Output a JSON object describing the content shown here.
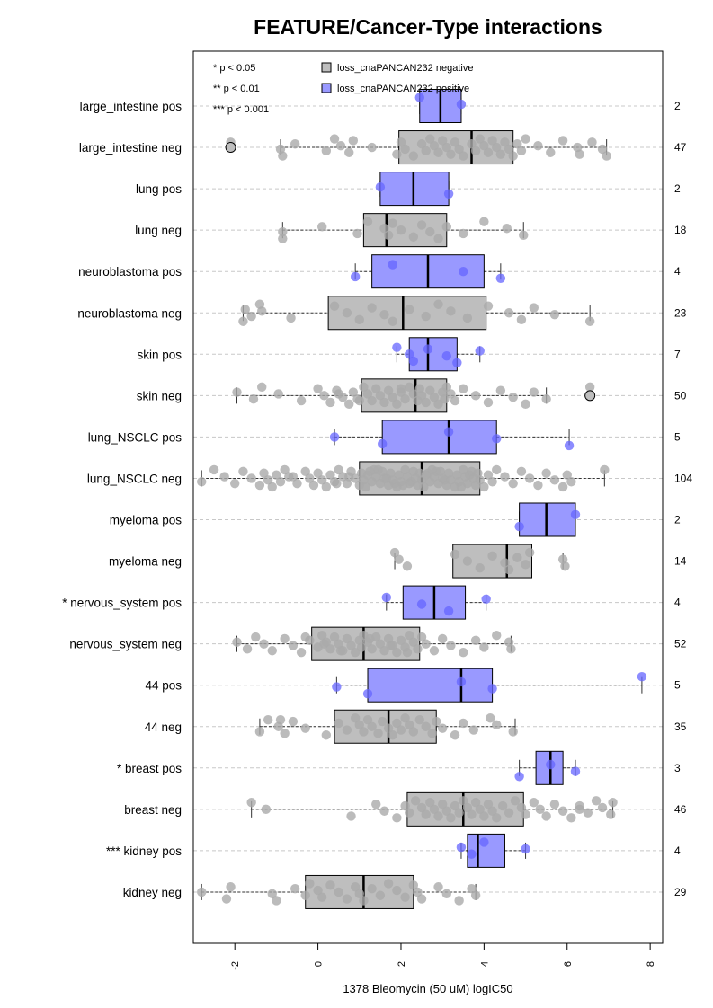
{
  "chart_data": {
    "type": "boxplot",
    "orientation": "horizontal",
    "title": "FEATURE/Cancer-Type interactions",
    "xlabel": "1378 Bleomycin (50 uM) logIC50",
    "xlim": [
      -3.0,
      8.3
    ],
    "x_ticks": [
      -2,
      0,
      2,
      4,
      6,
      8
    ],
    "grid": "horizontal dashed",
    "colors": {
      "negative": "#bebebe",
      "positive": "#9999ff",
      "negative_point": "#aaaaaa",
      "positive_point": "#6666ff"
    },
    "legend": {
      "placement": "top",
      "significance": [
        "* p < 0.05",
        "** p < 0.01",
        "*** p < 0.001"
      ],
      "entries": [
        {
          "label": "loss_cnaPANCAN232 negative",
          "group": "negative"
        },
        {
          "label": "loss_cnaPANCAN232 positive",
          "group": "positive"
        }
      ]
    },
    "rows": [
      {
        "label": "large_intestine pos",
        "group": "positive",
        "n": "2",
        "q1": 2.45,
        "median": 2.95,
        "q3": 3.45,
        "whisker_low": 2.45,
        "whisker_high": 3.45,
        "outliers": [],
        "points": [
          2.45,
          3.45
        ]
      },
      {
        "label": "large_intestine neg",
        "group": "negative",
        "n": "47",
        "q1": 1.95,
        "median": 3.7,
        "q3": 4.7,
        "whisker_low": -0.9,
        "whisker_high": 6.95,
        "outliers": [
          -2.1
        ],
        "points": [
          -2.1,
          -0.9,
          -0.85,
          -0.55,
          0.2,
          0.4,
          0.55,
          0.75,
          0.85,
          1.3,
          1.9,
          2.0,
          2.1,
          2.3,
          2.5,
          2.6,
          2.7,
          2.8,
          2.9,
          3.0,
          3.1,
          3.2,
          3.3,
          3.4,
          3.5,
          3.7,
          3.8,
          3.9,
          4.0,
          4.1,
          4.2,
          4.3,
          4.4,
          4.5,
          4.6,
          4.7,
          4.8,
          4.9,
          5.0,
          5.3,
          5.6,
          5.9,
          6.25,
          6.3,
          6.6,
          6.85,
          6.95
        ]
      },
      {
        "label": "lung pos",
        "group": "positive",
        "n": "2",
        "q1": 1.5,
        "median": 2.3,
        "q3": 3.15,
        "whisker_low": 1.5,
        "whisker_high": 3.15,
        "outliers": [],
        "points": [
          1.5,
          3.15
        ]
      },
      {
        "label": "lung neg",
        "group": "negative",
        "n": "18",
        "q1": 1.1,
        "median": 1.65,
        "q3": 3.1,
        "whisker_low": -0.85,
        "whisker_high": 4.95,
        "outliers": [],
        "points": [
          -0.85,
          -0.85,
          0.1,
          0.95,
          1.2,
          1.6,
          1.7,
          1.8,
          2.0,
          2.3,
          2.5,
          2.7,
          2.9,
          3.1,
          3.5,
          4.0,
          4.55,
          4.95
        ]
      },
      {
        "label": "neuroblastoma pos",
        "group": "positive",
        "n": "4",
        "q1": 1.3,
        "median": 2.65,
        "q3": 4.0,
        "whisker_low": 0.9,
        "whisker_high": 4.4,
        "outliers": [],
        "points": [
          0.9,
          1.8,
          3.5,
          4.4
        ]
      },
      {
        "label": "neuroblastoma neg",
        "group": "negative",
        "n": "23",
        "q1": 0.25,
        "median": 2.05,
        "q3": 4.05,
        "whisker_low": -1.8,
        "whisker_high": 6.55,
        "outliers": [],
        "points": [
          -1.8,
          -1.75,
          -1.6,
          -1.4,
          -1.35,
          -0.65,
          0.4,
          0.7,
          1.0,
          1.3,
          1.6,
          1.8,
          2.2,
          2.6,
          2.9,
          3.2,
          3.6,
          4.1,
          4.6,
          4.9,
          5.2,
          5.7,
          6.55
        ]
      },
      {
        "label": "skin pos",
        "group": "positive",
        "n": "7",
        "q1": 2.2,
        "median": 2.65,
        "q3": 3.35,
        "whisker_low": 1.9,
        "whisker_high": 3.9,
        "outliers": [],
        "points": [
          1.9,
          2.2,
          2.3,
          2.65,
          3.1,
          3.35,
          3.9
        ]
      },
      {
        "label": "skin neg",
        "group": "negative",
        "n": "50",
        "q1": 1.05,
        "median": 2.35,
        "q3": 3.1,
        "whisker_low": -1.95,
        "whisker_high": 5.5,
        "outliers": [
          6.55
        ],
        "points": [
          -1.95,
          -1.55,
          -1.35,
          -0.95,
          -0.4,
          0.0,
          0.15,
          0.3,
          0.45,
          0.6,
          0.75,
          0.85,
          0.95,
          1.1,
          1.2,
          1.3,
          1.4,
          1.5,
          1.6,
          1.7,
          1.8,
          1.9,
          2.0,
          2.1,
          2.2,
          2.3,
          2.4,
          2.45,
          2.5,
          2.6,
          2.7,
          2.8,
          2.9,
          3.0,
          3.05,
          3.1,
          3.2,
          3.3,
          3.5,
          3.8,
          4.1,
          4.4,
          4.7,
          5.0,
          5.2,
          5.5,
          6.55,
          0.5,
          1.0,
          2.0
        ]
      },
      {
        "label": "lung_NSCLC pos",
        "group": "positive",
        "n": "5",
        "q1": 1.55,
        "median": 3.15,
        "q3": 4.3,
        "whisker_low": 0.4,
        "whisker_high": 6.05,
        "outliers": [],
        "points": [
          0.4,
          1.55,
          3.15,
          4.3,
          6.05
        ]
      },
      {
        "label": "lung_NSCLC neg",
        "group": "negative",
        "n": "104",
        "q1": 1.0,
        "median": 2.5,
        "q3": 3.9,
        "whisker_low": -2.8,
        "whisker_high": 6.9,
        "outliers": [],
        "points": [
          -2.8,
          -2.5,
          -2.25,
          -2.0,
          -1.8,
          -1.6,
          -1.4,
          -1.3,
          -1.2,
          -1.1,
          -1.0,
          -0.9,
          -0.8,
          -0.7,
          -0.5,
          -0.3,
          -0.2,
          -0.1,
          0.0,
          0.1,
          0.2,
          0.3,
          0.4,
          0.5,
          0.6,
          0.7,
          0.8,
          0.9,
          1.0,
          1.05,
          1.1,
          1.15,
          1.2,
          1.3,
          1.35,
          1.4,
          1.5,
          1.55,
          1.6,
          1.7,
          1.75,
          1.8,
          1.9,
          1.95,
          2.0,
          2.1,
          2.15,
          2.2,
          2.3,
          2.35,
          2.4,
          2.45,
          2.5,
          2.55,
          2.6,
          2.7,
          2.75,
          2.8,
          2.9,
          2.95,
          3.0,
          3.1,
          3.15,
          3.2,
          3.3,
          3.35,
          3.4,
          3.5,
          3.55,
          3.6,
          3.7,
          3.75,
          3.8,
          3.85,
          3.9,
          4.0,
          4.1,
          4.2,
          4.3,
          4.5,
          4.7,
          4.9,
          5.1,
          5.3,
          5.5,
          5.7,
          5.9,
          6.0,
          6.1,
          6.9,
          -0.6,
          0.45,
          1.25,
          1.65,
          2.05,
          2.65,
          3.05,
          3.45,
          3.65,
          2.25,
          1.45,
          0.75,
          1.85,
          2.85
        ]
      },
      {
        "label": "myeloma pos",
        "group": "positive",
        "n": "2",
        "q1": 4.85,
        "median": 5.5,
        "q3": 6.2,
        "whisker_low": 4.85,
        "whisker_high": 6.2,
        "outliers": [],
        "points": [
          4.85,
          6.2
        ]
      },
      {
        "label": "myeloma neg",
        "group": "negative",
        "n": "14",
        "q1": 3.25,
        "median": 4.55,
        "q3": 5.15,
        "whisker_low": 1.85,
        "whisker_high": 5.9,
        "outliers": [],
        "points": [
          1.85,
          1.95,
          2.15,
          3.3,
          3.6,
          3.9,
          4.2,
          4.5,
          4.6,
          4.8,
          5.0,
          5.1,
          5.9,
          5.95
        ]
      },
      {
        "label": "* nervous_system pos",
        "group": "positive",
        "n": "4",
        "q1": 2.05,
        "median": 2.8,
        "q3": 3.55,
        "whisker_low": 1.65,
        "whisker_high": 4.05,
        "outliers": [],
        "points": [
          1.65,
          2.5,
          3.15,
          4.05
        ]
      },
      {
        "label": "nervous_system neg",
        "group": "negative",
        "n": "52",
        "q1": -0.15,
        "median": 1.1,
        "q3": 2.45,
        "whisker_low": -1.95,
        "whisker_high": 4.65,
        "outliers": [],
        "points": [
          -1.95,
          -1.7,
          -1.5,
          -1.3,
          -1.1,
          -0.8,
          -0.6,
          -0.4,
          -0.2,
          0.0,
          0.1,
          0.2,
          0.3,
          0.4,
          0.5,
          0.6,
          0.7,
          0.8,
          0.9,
          1.0,
          1.05,
          1.1,
          1.2,
          1.3,
          1.4,
          1.5,
          1.6,
          1.7,
          1.8,
          1.9,
          2.0,
          2.1,
          2.2,
          2.3,
          2.4,
          2.5,
          2.6,
          2.8,
          3.0,
          3.2,
          3.5,
          3.8,
          4.0,
          4.3,
          4.6,
          4.65,
          -0.3,
          0.15,
          0.55,
          1.25,
          1.75,
          2.15
        ]
      },
      {
        "label": "44 pos",
        "group": "positive",
        "n": "5",
        "q1": 1.2,
        "median": 3.45,
        "q3": 4.2,
        "whisker_low": 0.45,
        "whisker_high": 7.8,
        "outliers": [],
        "points": [
          0.45,
          1.2,
          3.45,
          4.2,
          7.8
        ]
      },
      {
        "label": "44 neg",
        "group": "negative",
        "n": "35",
        "q1": 0.4,
        "median": 1.7,
        "q3": 2.85,
        "whisker_low": -1.4,
        "whisker_high": 4.75,
        "outliers": [],
        "points": [
          -1.4,
          -1.2,
          -0.95,
          -0.8,
          -0.6,
          -0.3,
          0.2,
          0.5,
          0.7,
          0.9,
          1.0,
          1.1,
          1.2,
          1.3,
          1.45,
          1.55,
          1.7,
          1.8,
          1.9,
          2.0,
          2.1,
          2.2,
          2.3,
          2.45,
          2.6,
          2.75,
          2.85,
          3.0,
          3.3,
          3.5,
          3.75,
          4.15,
          4.3,
          4.7,
          -0.9
        ]
      },
      {
        "label": "* breast pos",
        "group": "positive",
        "n": "3",
        "q1": 5.25,
        "median": 5.6,
        "q3": 5.9,
        "whisker_low": 4.85,
        "whisker_high": 6.2,
        "outliers": [],
        "points": [
          4.85,
          5.6,
          6.2
        ]
      },
      {
        "label": "breast neg",
        "group": "negative",
        "n": "46",
        "q1": 2.15,
        "median": 3.5,
        "q3": 4.95,
        "whisker_low": -1.6,
        "whisker_high": 7.1,
        "outliers": [],
        "points": [
          -1.6,
          -1.25,
          0.8,
          1.4,
          1.6,
          1.9,
          2.1,
          2.2,
          2.35,
          2.5,
          2.6,
          2.7,
          2.8,
          2.9,
          3.0,
          3.1,
          3.2,
          3.3,
          3.4,
          3.5,
          3.6,
          3.7,
          3.8,
          3.9,
          4.0,
          4.1,
          4.2,
          4.3,
          4.45,
          4.6,
          4.75,
          4.9,
          5.0,
          5.2,
          5.35,
          5.5,
          5.7,
          5.9,
          6.1,
          6.3,
          6.5,
          6.7,
          6.85,
          7.05,
          7.1,
          6.3
        ]
      },
      {
        "label": "*** kidney pos",
        "group": "positive",
        "n": "4",
        "q1": 3.6,
        "median": 3.85,
        "q3": 4.5,
        "whisker_low": 3.45,
        "whisker_high": 5.0,
        "outliers": [],
        "points": [
          3.45,
          3.7,
          4.0,
          5.0
        ]
      },
      {
        "label": "kidney neg",
        "group": "negative",
        "n": "29",
        "q1": -0.3,
        "median": 1.1,
        "q3": 2.3,
        "whisker_low": -2.8,
        "whisker_high": 3.8,
        "outliers": [],
        "points": [
          -2.8,
          -2.2,
          -2.1,
          -1.1,
          -1.0,
          -0.55,
          -0.3,
          -0.2,
          0.0,
          0.1,
          0.3,
          0.5,
          0.7,
          0.9,
          1.0,
          1.1,
          1.3,
          1.5,
          1.7,
          1.9,
          2.1,
          2.3,
          2.4,
          2.5,
          2.9,
          3.1,
          3.4,
          3.7,
          3.8
        ]
      }
    ]
  }
}
